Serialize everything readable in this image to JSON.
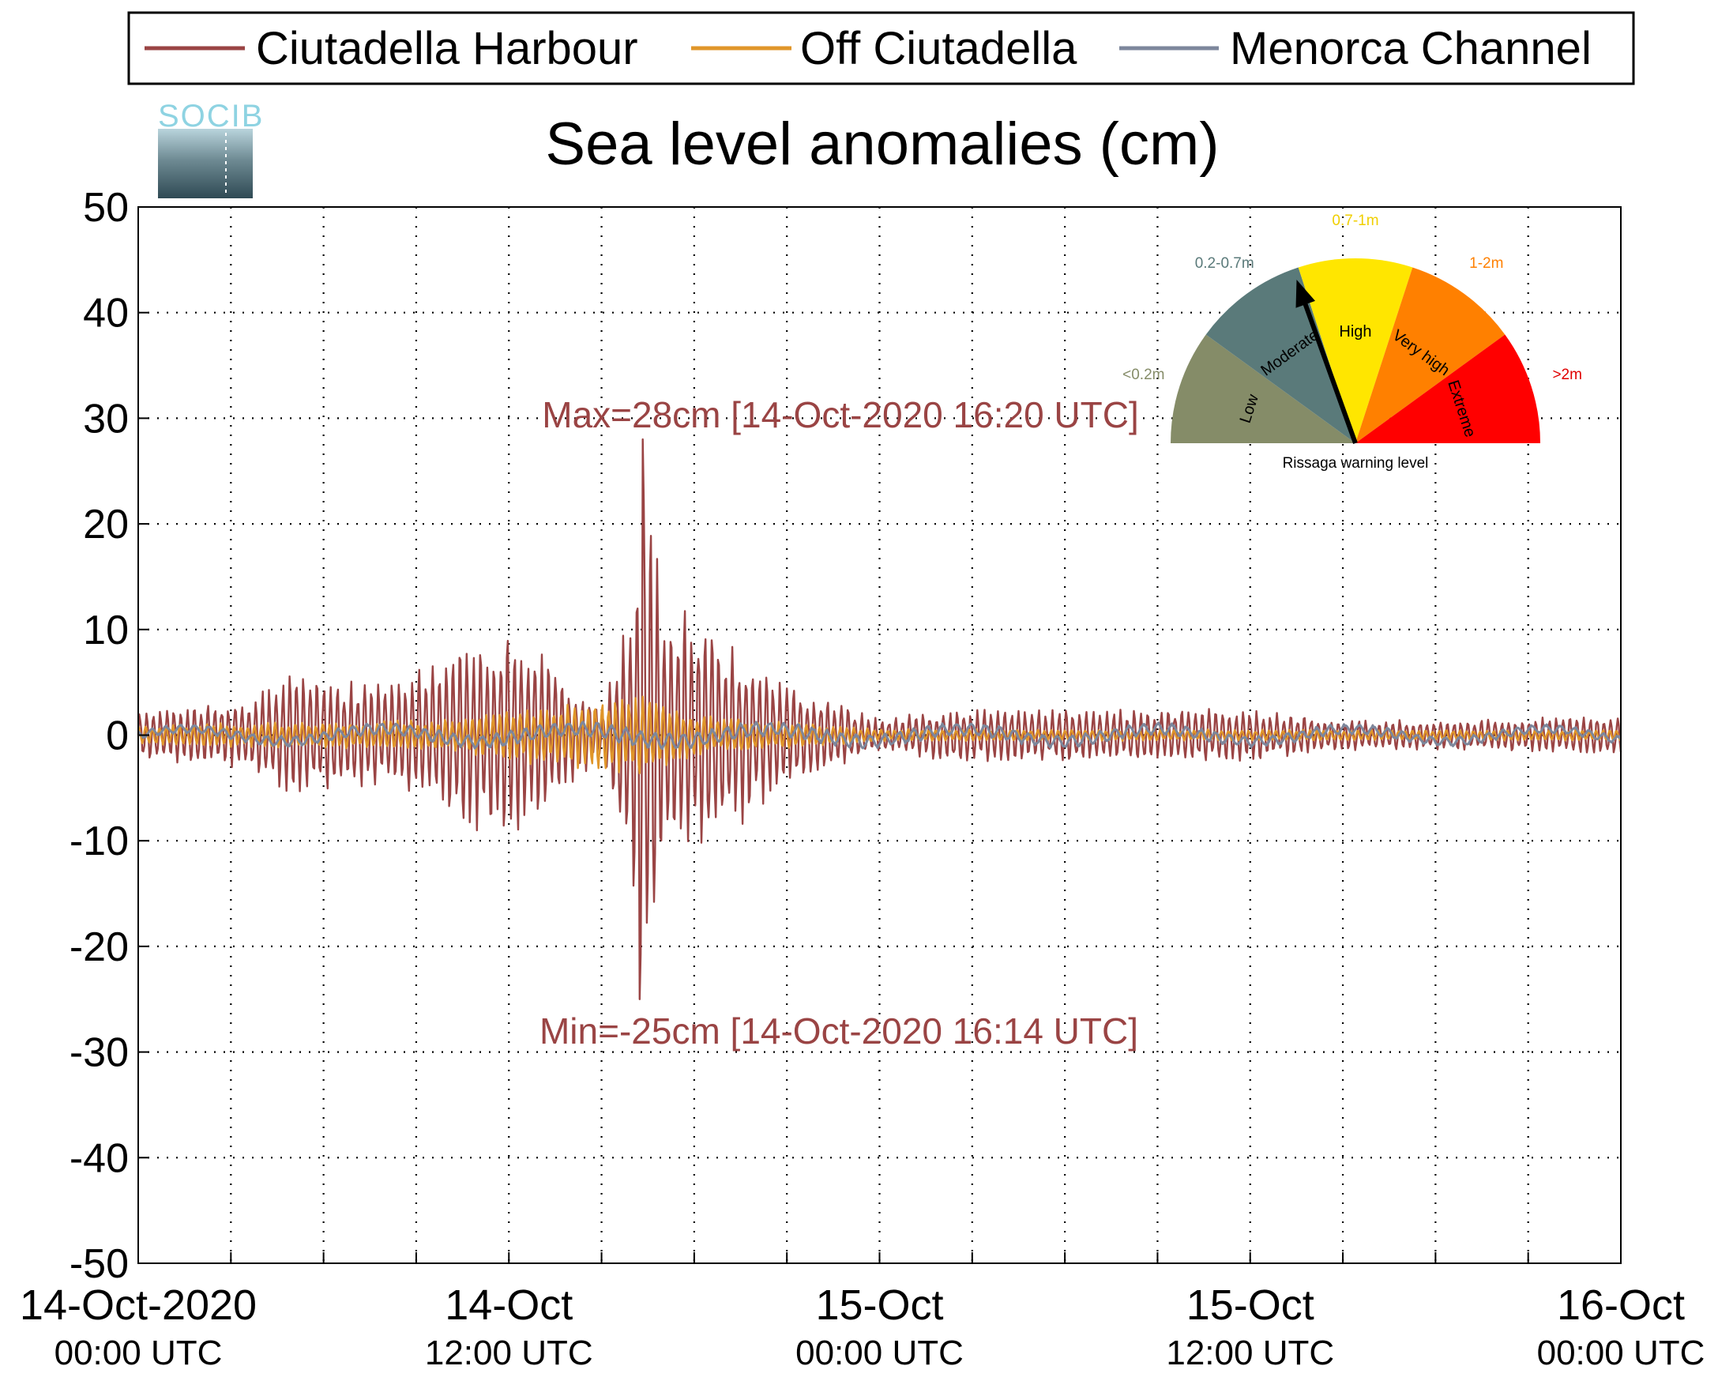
{
  "chart_data": {
    "type": "line",
    "title": "Sea level anomalies (cm)",
    "ylim": [
      -50,
      50
    ],
    "yticks": [
      -50,
      -40,
      -30,
      -20,
      -10,
      0,
      10,
      20,
      30,
      40,
      50
    ],
    "xlim": [
      "2020-10-14T00:00Z",
      "2020-10-16T00:00Z"
    ],
    "x_tick_labels": [
      {
        "line1": "14-Oct-2020",
        "line2": "00:00 UTC"
      },
      {
        "line1": "14-Oct",
        "line2": "12:00 UTC"
      },
      {
        "line1": "15-Oct",
        "line2": "00:00 UTC"
      },
      {
        "line1": "15-Oct",
        "line2": "12:00 UTC"
      },
      {
        "line1": "16-Oct",
        "line2": "00:00 UTC"
      }
    ],
    "grid": true,
    "legend_position": "top",
    "series": [
      {
        "name": "Ciutadella Harbour",
        "color": "#9a4444",
        "envelope": [
          {
            "t": "2020-10-14T00:00Z",
            "amp": 2.5
          },
          {
            "t": "2020-10-14T03:00Z",
            "amp": 3
          },
          {
            "t": "2020-10-14T05:00Z",
            "amp": 6
          },
          {
            "t": "2020-10-14T08:00Z",
            "amp": 5
          },
          {
            "t": "2020-10-14T12:00Z",
            "amp": 11
          },
          {
            "t": "2020-10-14T14:00Z",
            "amp": 5
          },
          {
            "t": "2020-10-14T15:00Z",
            "amp": 2
          },
          {
            "t": "2020-10-14T16:00Z",
            "amp": 14
          },
          {
            "t": "2020-10-14T16:20Z",
            "amp": 27
          },
          {
            "t": "2020-10-14T17:00Z",
            "amp": 14
          },
          {
            "t": "2020-10-14T19:00Z",
            "amp": 10
          },
          {
            "t": "2020-10-14T21:00Z",
            "amp": 5
          },
          {
            "t": "2020-10-15T00:00Z",
            "amp": 1.5
          },
          {
            "t": "2020-10-15T02:00Z",
            "amp": 2.5
          },
          {
            "t": "2020-10-15T06:00Z",
            "amp": 2.5
          },
          {
            "t": "2020-10-15T09:00Z",
            "amp": 2.5
          },
          {
            "t": "2020-10-15T12:00Z",
            "amp": 2.5
          },
          {
            "t": "2020-10-15T15:00Z",
            "amp": 1.5
          },
          {
            "t": "2020-10-15T20:00Z",
            "amp": 1.5
          },
          {
            "t": "2020-10-16T00:00Z",
            "amp": 2
          }
        ]
      },
      {
        "name": "Off Ciutadella",
        "color": "#e0962a",
        "envelope": [
          {
            "t": "2020-10-14T00:00Z",
            "amp": 1
          },
          {
            "t": "2020-10-14T10:00Z",
            "amp": 1.5
          },
          {
            "t": "2020-10-14T12:00Z",
            "amp": 2.5
          },
          {
            "t": "2020-10-14T16:00Z",
            "amp": 4
          },
          {
            "t": "2020-10-14T18:00Z",
            "amp": 2
          },
          {
            "t": "2020-10-15T00:00Z",
            "amp": 0.6
          },
          {
            "t": "2020-10-16T00:00Z",
            "amp": 0.5
          }
        ]
      },
      {
        "name": "Menorca Channel",
        "color": "#7d879c",
        "envelope": [
          {
            "t": "2020-10-14T00:00Z",
            "amp": 0.4
          },
          {
            "t": "2020-10-14T16:00Z",
            "amp": 0.8
          },
          {
            "t": "2020-10-16T00:00Z",
            "amp": 0.4
          }
        ]
      }
    ],
    "extremes": {
      "max": {
        "value": 28,
        "time": "2020-10-14T16:20Z"
      },
      "min": {
        "value": -25,
        "time": "2020-10-14T16:14Z"
      }
    },
    "annotations": {
      "max_label": "Max=28cm [14-Oct-2020 16:20 UTC]",
      "min_label": "Min=-25cm [14-Oct-2020 16:14 UTC]",
      "color": "#9a4444"
    }
  },
  "gauge": {
    "caption": "Rissaga warning level",
    "needle_level": "Moderate",
    "levels": [
      {
        "name": "Low",
        "range": "<0.2m",
        "color": "#858c68",
        "label_color": "#858c68"
      },
      {
        "name": "Moderate",
        "range": "0.2-0.7m",
        "color": "#5a7a7a",
        "label_color": "#5a7a7a"
      },
      {
        "name": "High",
        "range": "0.7-1m",
        "color": "#ffe600",
        "label_color": "#f0cf00"
      },
      {
        "name": "Very high",
        "range": "1-2m",
        "color": "#ff8000",
        "label_color": "#ff8000"
      },
      {
        "name": "Extreme",
        "range": ">2m",
        "color": "#ff0000",
        "label_color": "#e00000"
      }
    ]
  },
  "logo": {
    "text": "SOCIB"
  }
}
